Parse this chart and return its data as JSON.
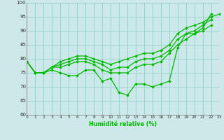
{
  "xlabel": "Humidité relative (%)",
  "bg_color": "#cce8e8",
  "line_color": "#00bb00",
  "grid_color": "#99cccc",
  "ylim": [
    60,
    100
  ],
  "xlim": [
    0,
    23
  ],
  "yticks": [
    60,
    65,
    70,
    75,
    80,
    85,
    90,
    95,
    100
  ],
  "lines": [
    [
      79,
      75,
      75,
      76,
      75,
      74,
      74,
      76,
      76,
      72,
      73,
      68,
      67,
      71,
      71,
      70,
      71,
      72,
      84,
      89,
      89,
      91,
      96,
      null
    ],
    [
      79,
      75,
      75,
      77,
      77,
      78,
      79,
      79,
      78,
      76,
      75,
      75,
      75,
      77,
      78,
      78,
      79,
      82,
      85,
      87,
      89,
      90,
      92,
      null
    ],
    [
      79,
      75,
      75,
      77,
      78,
      79,
      80,
      80,
      79,
      78,
      76,
      77,
      77,
      79,
      80,
      80,
      81,
      83,
      87,
      89,
      90,
      92,
      94,
      null
    ],
    [
      79,
      75,
      75,
      77,
      79,
      80,
      81,
      81,
      80,
      79,
      78,
      79,
      80,
      81,
      82,
      82,
      83,
      85,
      89,
      91,
      92,
      93,
      95,
      96
    ]
  ]
}
